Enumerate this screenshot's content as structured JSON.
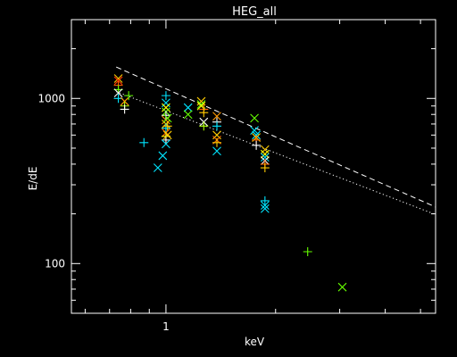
{
  "chart_data": {
    "type": "scatter",
    "title": "HEG_all",
    "xlabel": "keV",
    "ylabel": "E/dE",
    "xscale": "log",
    "yscale": "log",
    "xlim": [
      0.55,
      5.5
    ],
    "ylim": [
      50,
      3000
    ],
    "x_tick_labels": [
      {
        "value": 1,
        "label": "1"
      }
    ],
    "y_tick_labels": [
      {
        "value": 100,
        "label": "100"
      },
      {
        "value": 1000,
        "label": "1000"
      }
    ],
    "grid": false,
    "legend": "none",
    "colors": {
      "background": "#000000",
      "axes": "#ffffff",
      "text": "#ffffff"
    },
    "curves": [
      {
        "style": "dashed",
        "color": "#ffffff",
        "x": [
          0.73,
          5.5
        ],
        "y": [
          1550,
          220
        ]
      },
      {
        "style": "dotted",
        "color": "#ffffff",
        "x": [
          0.73,
          5.5
        ],
        "y": [
          1100,
          198
        ]
      }
    ],
    "points": [
      {
        "x": 0.74,
        "y": 1320,
        "marker": "x",
        "color": "#ffcc00"
      },
      {
        "x": 0.74,
        "y": 1280,
        "marker": "x",
        "color": "#ff3300"
      },
      {
        "x": 0.74,
        "y": 1200,
        "marker": "+",
        "color": "#ff6600"
      },
      {
        "x": 0.74,
        "y": 1130,
        "marker": "+",
        "color": "#66ff00"
      },
      {
        "x": 0.74,
        "y": 1080,
        "marker": "x",
        "color": "#ffffff"
      },
      {
        "x": 0.74,
        "y": 1000,
        "marker": "+",
        "color": "#00e5ff"
      },
      {
        "x": 0.77,
        "y": 960,
        "marker": "x",
        "color": "#ff9900"
      },
      {
        "x": 0.77,
        "y": 900,
        "marker": "+",
        "color": "#aaff00"
      },
      {
        "x": 0.77,
        "y": 860,
        "marker": "+",
        "color": "#ffffff"
      },
      {
        "x": 0.79,
        "y": 1040,
        "marker": "+",
        "color": "#66ff00"
      },
      {
        "x": 0.87,
        "y": 540,
        "marker": "+",
        "color": "#00e5ff"
      },
      {
        "x": 0.95,
        "y": 380,
        "marker": "x",
        "color": "#00e5ff"
      },
      {
        "x": 1.0,
        "y": 1040,
        "marker": "+",
        "color": "#00e5ff"
      },
      {
        "x": 1.0,
        "y": 940,
        "marker": "x",
        "color": "#00e5ff"
      },
      {
        "x": 1.0,
        "y": 880,
        "marker": "x",
        "color": "#ffff00"
      },
      {
        "x": 1.0,
        "y": 830,
        "marker": "x",
        "color": "#66ff00"
      },
      {
        "x": 1.0,
        "y": 790,
        "marker": "+",
        "color": "#ffffff"
      },
      {
        "x": 1.0,
        "y": 740,
        "marker": "x",
        "color": "#ff9900"
      },
      {
        "x": 1.0,
        "y": 700,
        "marker": "x",
        "color": "#ffcc00"
      },
      {
        "x": 1.0,
        "y": 660,
        "marker": "+",
        "color": "#00e5ff"
      },
      {
        "x": 1.0,
        "y": 620,
        "marker": "x",
        "color": "#ff6600"
      },
      {
        "x": 1.0,
        "y": 590,
        "marker": "+",
        "color": "#ffff00"
      },
      {
        "x": 1.0,
        "y": 560,
        "marker": "+",
        "color": "#ffffff"
      },
      {
        "x": 1.0,
        "y": 530,
        "marker": "x",
        "color": "#00e5ff"
      },
      {
        "x": 0.98,
        "y": 450,
        "marker": "x",
        "color": "#00e5ff"
      },
      {
        "x": 1.01,
        "y": 760,
        "marker": "x",
        "color": "#66ff00"
      },
      {
        "x": 1.01,
        "y": 680,
        "marker": "+",
        "color": "#ffcc00"
      },
      {
        "x": 1.01,
        "y": 600,
        "marker": "x",
        "color": "#ffcc00"
      },
      {
        "x": 1.15,
        "y": 880,
        "marker": "x",
        "color": "#00e5ff"
      },
      {
        "x": 1.15,
        "y": 800,
        "marker": "x",
        "color": "#66ff00"
      },
      {
        "x": 1.25,
        "y": 960,
        "marker": "x",
        "color": "#ffcc00"
      },
      {
        "x": 1.25,
        "y": 920,
        "marker": "x",
        "color": "#66ff00"
      },
      {
        "x": 1.25,
        "y": 900,
        "marker": "x",
        "color": "#ffff00"
      },
      {
        "x": 1.27,
        "y": 860,
        "marker": "+",
        "color": "#ff6600"
      },
      {
        "x": 1.27,
        "y": 820,
        "marker": "+",
        "color": "#ffcc00"
      },
      {
        "x": 1.27,
        "y": 720,
        "marker": "x",
        "color": "#ffffff"
      },
      {
        "x": 1.27,
        "y": 680,
        "marker": "+",
        "color": "#aaff00"
      },
      {
        "x": 1.38,
        "y": 780,
        "marker": "x",
        "color": "#ff9900"
      },
      {
        "x": 1.38,
        "y": 720,
        "marker": "+",
        "color": "#ffffff"
      },
      {
        "x": 1.38,
        "y": 680,
        "marker": "+",
        "color": "#00e5ff"
      },
      {
        "x": 1.38,
        "y": 600,
        "marker": "x",
        "color": "#ffcc00"
      },
      {
        "x": 1.38,
        "y": 560,
        "marker": "x",
        "color": "#ff6600"
      },
      {
        "x": 1.38,
        "y": 540,
        "marker": "+",
        "color": "#ffcc00"
      },
      {
        "x": 1.38,
        "y": 480,
        "marker": "x",
        "color": "#00e5ff"
      },
      {
        "x": 1.75,
        "y": 760,
        "marker": "x",
        "color": "#66ff00"
      },
      {
        "x": 1.75,
        "y": 640,
        "marker": "x",
        "color": "#00e5ff"
      },
      {
        "x": 1.77,
        "y": 600,
        "marker": "x",
        "color": "#00e5ff"
      },
      {
        "x": 1.77,
        "y": 580,
        "marker": "x",
        "color": "#ffcc00"
      },
      {
        "x": 1.77,
        "y": 560,
        "marker": "+",
        "color": "#ff6600"
      },
      {
        "x": 1.77,
        "y": 520,
        "marker": "+",
        "color": "#ffffff"
      },
      {
        "x": 1.87,
        "y": 490,
        "marker": "x",
        "color": "#ffcc00"
      },
      {
        "x": 1.87,
        "y": 460,
        "marker": "x",
        "color": "#ffff00"
      },
      {
        "x": 1.87,
        "y": 440,
        "marker": "x",
        "color": "#00e5ff"
      },
      {
        "x": 1.87,
        "y": 420,
        "marker": "x",
        "color": "#ffffff"
      },
      {
        "x": 1.87,
        "y": 400,
        "marker": "+",
        "color": "#ff6600"
      },
      {
        "x": 1.87,
        "y": 380,
        "marker": "+",
        "color": "#ffcc00"
      },
      {
        "x": 1.87,
        "y": 240,
        "marker": "+",
        "color": "#00e5ff"
      },
      {
        "x": 1.87,
        "y": 225,
        "marker": "x",
        "color": "#00e5ff"
      },
      {
        "x": 1.87,
        "y": 215,
        "marker": "x",
        "color": "#00e5ff"
      },
      {
        "x": 2.45,
        "y": 118,
        "marker": "+",
        "color": "#66ff00"
      },
      {
        "x": 3.05,
        "y": 72,
        "marker": "x",
        "color": "#66ff00"
      }
    ]
  }
}
